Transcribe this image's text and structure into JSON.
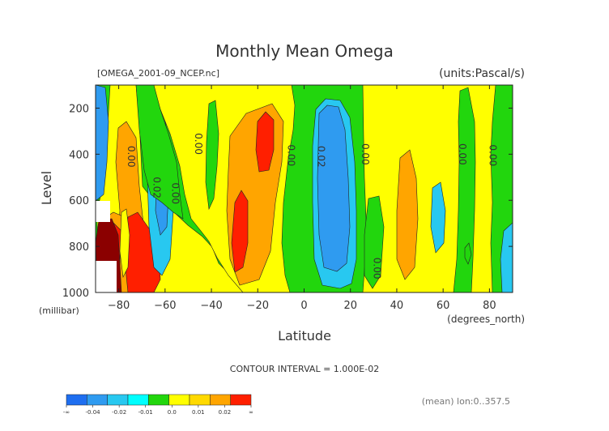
{
  "chart_data": {
    "type": "heatmap",
    "title": "Monthly Mean Omega",
    "file_label": "[OMEGA_2001-09_NCEP.nc]",
    "units_label": "(units:Pascal/s)",
    "xlabel": "Latitude",
    "x_unit_label": "(degrees_north)",
    "ylabel": "Level",
    "y_unit_label": "(millibar)",
    "xlim": [
      -90,
      90
    ],
    "ylim": [
      1000,
      100
    ],
    "x_ticks": [
      -80,
      -60,
      -40,
      -20,
      0,
      20,
      40,
      60,
      80
    ],
    "y_ticks": [
      200,
      400,
      600,
      800,
      1000
    ],
    "contour_interval_label": "CONTOUR INTERVAL = 1.000E-02",
    "mean_label": "(mean) lon:0..357.5",
    "contour_labels": [
      {
        "text": "0.00",
        "lat": -76,
        "lev": 410
      },
      {
        "text": "0.02",
        "lat": -65,
        "lev": 545
      },
      {
        "text": "0.00",
        "lat": -57,
        "lev": 570
      },
      {
        "text": "0.00",
        "lat": -47,
        "lev": 355
      },
      {
        "text": "0.00",
        "lat": -7,
        "lev": 405
      },
      {
        "text": "0.02",
        "lat": 6,
        "lev": 410
      },
      {
        "text": "0.00",
        "lat": 25,
        "lev": 400
      },
      {
        "text": "0.00",
        "lat": 30,
        "lev": 895
      },
      {
        "text": "0.00",
        "lat": 67,
        "lev": 400
      },
      {
        "text": "0.00",
        "lat": 80,
        "lev": 405
      }
    ],
    "colorbar": {
      "colors": [
        "#1e6ef0",
        "#2f9bf0",
        "#28c8f0",
        "#00ffff",
        "#22d60d",
        "#ffff00",
        "#ffd900",
        "#ffa500",
        "#ff1f00"
      ],
      "labels": [
        "-∞",
        "-0.04",
        "-0.02",
        "-0.01",
        "0.0",
        "0.01",
        "0.02",
        "∞"
      ]
    }
  }
}
